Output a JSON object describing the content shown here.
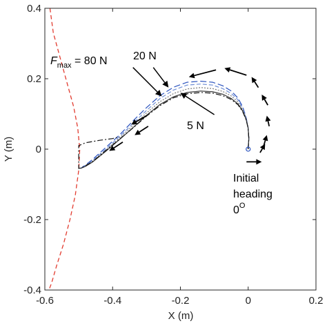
{
  "chart_data": {
    "type": "line",
    "xlabel": "X (m)",
    "ylabel": "Y (m)",
    "xlim": [
      -0.6,
      0.2
    ],
    "ylim": [
      -0.4,
      0.4
    ],
    "xticks": [
      -0.6,
      -0.4,
      -0.2,
      0,
      0.2
    ],
    "yticks": [
      -0.4,
      -0.2,
      0,
      0.2,
      0.4
    ],
    "xtick_labels": [
      "-0.6",
      "-0.4",
      "-0.2",
      "0",
      "0.2"
    ],
    "ytick_labels": [
      "-0.4",
      "-0.2",
      "0",
      "0.2",
      "0.4"
    ],
    "grid": false,
    "boundary": {
      "color": "#e23b2f",
      "style": "dashed",
      "x": [
        -0.585,
        -0.575,
        -0.555,
        -0.535,
        -0.515,
        -0.503,
        -0.497,
        -0.5,
        -0.51,
        -0.526,
        -0.545,
        -0.565,
        -0.58,
        -0.588
      ],
      "y": [
        0.4,
        0.33,
        0.26,
        0.19,
        0.12,
        0.06,
        0.0,
        -0.06,
        -0.13,
        -0.2,
        -0.27,
        -0.33,
        -0.38,
        -0.4
      ]
    },
    "series": [
      {
        "color": "#2a52be",
        "dash": "9,4",
        "x": [
          0.0,
          0.002,
          0.0,
          -0.006,
          -0.016,
          -0.03,
          -0.05,
          -0.075,
          -0.105,
          -0.14,
          -0.18,
          -0.22,
          -0.26,
          -0.3,
          -0.34,
          -0.38,
          -0.42,
          -0.46,
          -0.48,
          -0.495
        ],
        "y": [
          0.0,
          0.03,
          0.06,
          0.09,
          0.12,
          0.145,
          0.165,
          0.18,
          0.19,
          0.193,
          0.19,
          0.176,
          0.152,
          0.118,
          0.08,
          0.04,
          0.005,
          -0.03,
          -0.045,
          -0.055
        ]
      },
      {
        "color": "#6f8ed6",
        "dash": "6,3",
        "x": [
          0.0,
          0.002,
          0.0,
          -0.006,
          -0.016,
          -0.03,
          -0.05,
          -0.075,
          -0.105,
          -0.14,
          -0.18,
          -0.22,
          -0.26,
          -0.3,
          -0.34,
          -0.38,
          -0.42,
          -0.46,
          -0.48,
          -0.495
        ],
        "y": [
          0.0,
          0.03,
          0.06,
          0.088,
          0.116,
          0.14,
          0.158,
          0.172,
          0.182,
          0.185,
          0.182,
          0.168,
          0.144,
          0.11,
          0.073,
          0.035,
          0.0,
          -0.033,
          -0.047,
          -0.055
        ]
      },
      {
        "color": "#777777",
        "dash": "2,2",
        "x": [
          0.0,
          0.002,
          0.0,
          -0.006,
          -0.016,
          -0.03,
          -0.05,
          -0.075,
          -0.105,
          -0.14,
          -0.18,
          -0.22,
          -0.26,
          -0.3,
          -0.34,
          -0.38,
          -0.42,
          -0.46,
          -0.48,
          -0.495
        ],
        "y": [
          0.0,
          0.03,
          0.06,
          0.086,
          0.112,
          0.134,
          0.151,
          0.164,
          0.172,
          0.175,
          0.171,
          0.158,
          0.135,
          0.103,
          0.067,
          0.031,
          -0.003,
          -0.035,
          -0.048,
          -0.055
        ]
      },
      {
        "color": "#333333",
        "dash": "",
        "x": [
          0.0,
          0.002,
          0.0,
          -0.006,
          -0.016,
          -0.03,
          -0.05,
          -0.075,
          -0.105,
          -0.14,
          -0.18,
          -0.22,
          -0.26,
          -0.3,
          -0.34,
          -0.38,
          -0.42,
          -0.46,
          -0.48,
          -0.495
        ],
        "y": [
          0.0,
          0.03,
          0.06,
          0.084,
          0.108,
          0.128,
          0.144,
          0.156,
          0.163,
          0.165,
          0.161,
          0.149,
          0.127,
          0.096,
          0.061,
          0.027,
          -0.006,
          -0.037,
          -0.049,
          -0.055
        ]
      },
      {
        "color": "#111111",
        "dash": "8,3,2,3",
        "x": [
          0.0,
          0.002,
          0.0,
          -0.006,
          -0.016,
          -0.03,
          -0.05,
          -0.075,
          -0.105,
          -0.14,
          -0.18,
          -0.22,
          -0.26,
          -0.3,
          -0.34,
          -0.38,
          -0.42,
          -0.46,
          -0.49,
          -0.5,
          -0.5,
          -0.48,
          -0.44,
          -0.4,
          -0.38
        ],
        "y": [
          0.0,
          0.03,
          0.06,
          0.083,
          0.106,
          0.126,
          0.141,
          0.152,
          0.159,
          0.161,
          0.157,
          0.146,
          0.124,
          0.094,
          0.06,
          0.028,
          -0.004,
          -0.036,
          -0.052,
          -0.055,
          0.01,
          0.018,
          0.025,
          0.03,
          0.035
        ]
      }
    ],
    "start_marker": {
      "x": 0.0,
      "y": 0.0,
      "color": "#2a52be"
    },
    "arrows": [
      {
        "x1": -0.095,
        "y1": 0.225,
        "x2": -0.175,
        "y2": 0.205
      },
      {
        "x1": -0.005,
        "y1": 0.21,
        "x2": -0.07,
        "y2": 0.23
      },
      {
        "x1": 0.03,
        "y1": 0.175,
        "x2": 0.01,
        "y2": 0.205
      },
      {
        "x1": 0.058,
        "y1": 0.125,
        "x2": 0.04,
        "y2": 0.155
      },
      {
        "x1": 0.062,
        "y1": 0.065,
        "x2": 0.055,
        "y2": 0.095
      },
      {
        "x1": 0.046,
        "y1": 0.01,
        "x2": 0.055,
        "y2": 0.04
      },
      {
        "x1": 0.035,
        "y1": -0.01,
        "x2": 0.05,
        "y2": 0.015
      },
      {
        "x1": -0.005,
        "y1": -0.036,
        "x2": 0.04,
        "y2": -0.036
      },
      {
        "x1": -0.3,
        "y1": 0.095,
        "x2": -0.345,
        "y2": 0.07
      },
      {
        "x1": -0.295,
        "y1": 0.065,
        "x2": -0.335,
        "y2": 0.04
      },
      {
        "x1": -0.37,
        "y1": 0.02,
        "x2": -0.41,
        "y2": -0.005
      }
    ],
    "pointers": [
      {
        "x1": -0.34,
        "y1": 0.232,
        "x2": -0.255,
        "y2": 0.15
      },
      {
        "x1": -0.28,
        "y1": 0.232,
        "x2": -0.235,
        "y2": 0.175
      },
      {
        "x1": -0.1,
        "y1": 0.098,
        "x2": -0.2,
        "y2": 0.16
      }
    ],
    "annotations": {
      "fmax_symbol": "F",
      "fmax_sub": "max",
      "fmax_text": " = 80 N",
      "f20": "20 N",
      "f5": "5 N",
      "heading_line1": "Initial",
      "heading_line2": "heading",
      "heading_line3": "0",
      "heading_degree": "O"
    }
  }
}
